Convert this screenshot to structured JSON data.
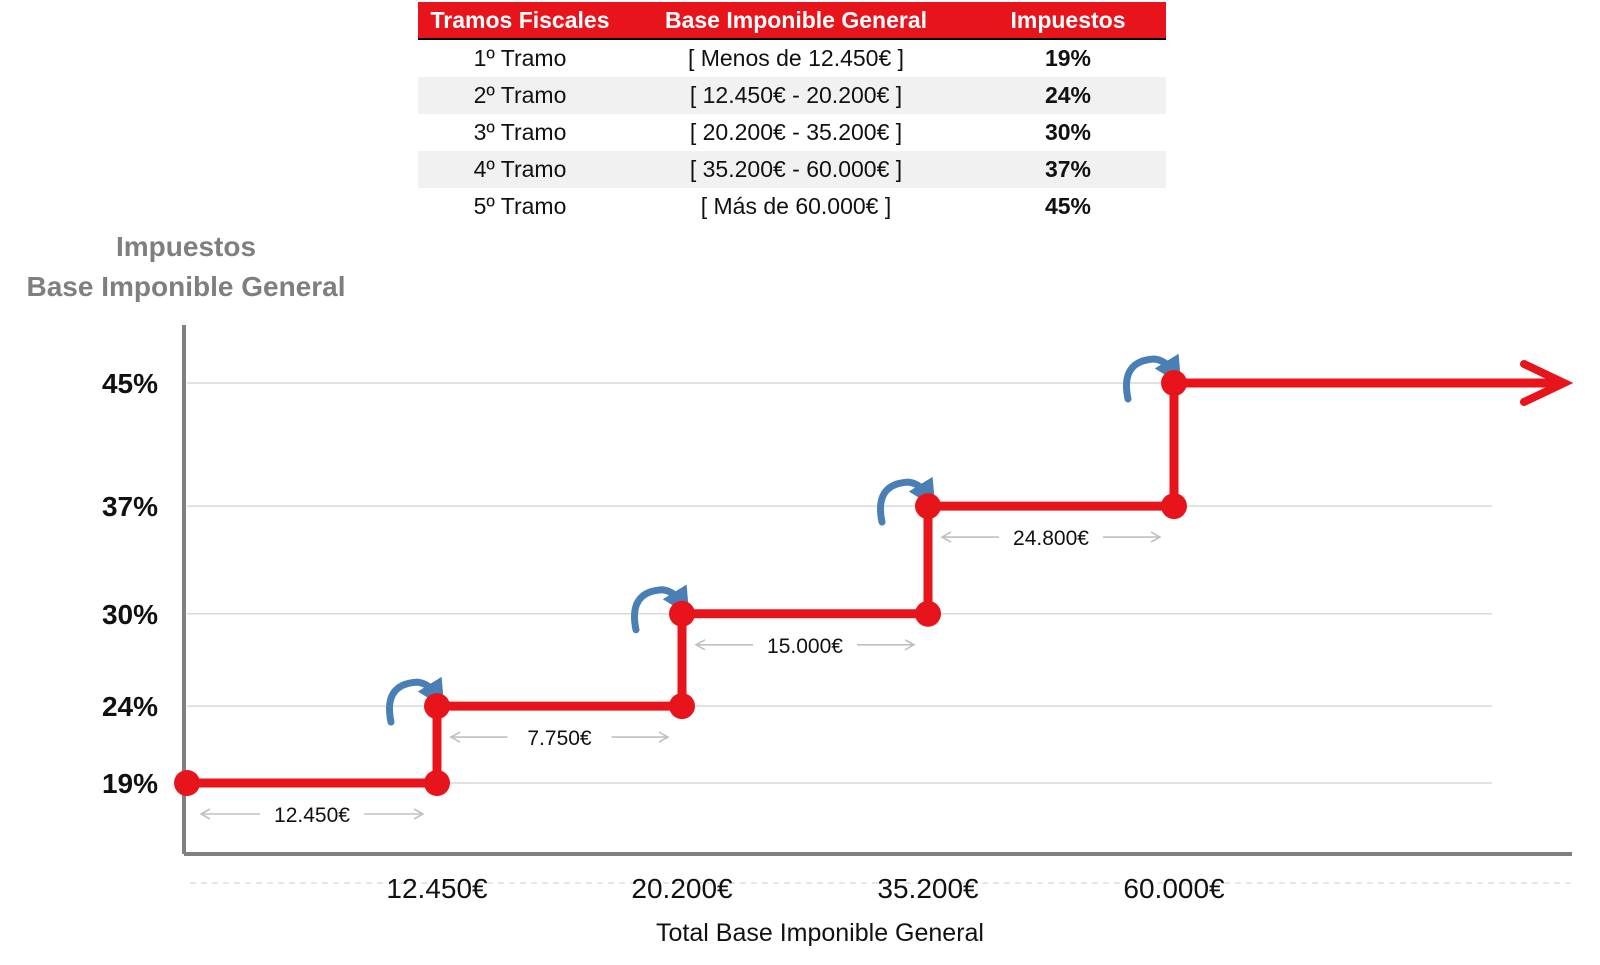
{
  "table": {
    "headers": [
      "Tramos Fiscales",
      "Base Imponible General",
      "Impuestos"
    ],
    "rows": [
      [
        "1º Tramo",
        "[ Menos de 12.450€ ]",
        "19%"
      ],
      [
        "2º Tramo",
        "[ 12.450€ - 20.200€ ]",
        "24%"
      ],
      [
        "3º Tramo",
        "[ 20.200€ - 35.200€ ]",
        "30%"
      ],
      [
        "4º Tramo",
        "[ 35.200€ - 60.000€ ]",
        "37%"
      ],
      [
        "5º Tramo",
        "[ Más de 60.000€ ]",
        "45%"
      ]
    ]
  },
  "chart_data": {
    "type": "line",
    "step": true,
    "ylabel_lines": [
      "Impuestos",
      "Base Imponible General"
    ],
    "xlabel": "Total Base Imponible General",
    "y_ticks": [
      19,
      24,
      30,
      37,
      45
    ],
    "y_tick_labels": [
      "19%",
      "24%",
      "30%",
      "37%",
      "45%"
    ],
    "x_ticks": [
      12450,
      20200,
      35200,
      60000
    ],
    "x_tick_labels": [
      "12.450€",
      "20.200€",
      "35.200€",
      "60.000€"
    ],
    "steps": [
      {
        "x_start": 0,
        "x_end": 12450,
        "rate": 19
      },
      {
        "x_start": 12450,
        "x_end": 20200,
        "rate": 24
      },
      {
        "x_start": 20200,
        "x_end": 35200,
        "rate": 30
      },
      {
        "x_start": 35200,
        "x_end": 60000,
        "rate": 37
      },
      {
        "x_start": 60000,
        "x_end": null,
        "rate": 45
      }
    ],
    "span_labels": [
      "12.450€",
      "7.750€",
      "15.000€",
      "24.800€"
    ],
    "grid": true,
    "colors": {
      "line": "#e8141b",
      "grid": "#d9d9d9",
      "axis": "#808080",
      "curl": "#4a7fb5",
      "span_arrow": "#c0c0c0"
    }
  }
}
